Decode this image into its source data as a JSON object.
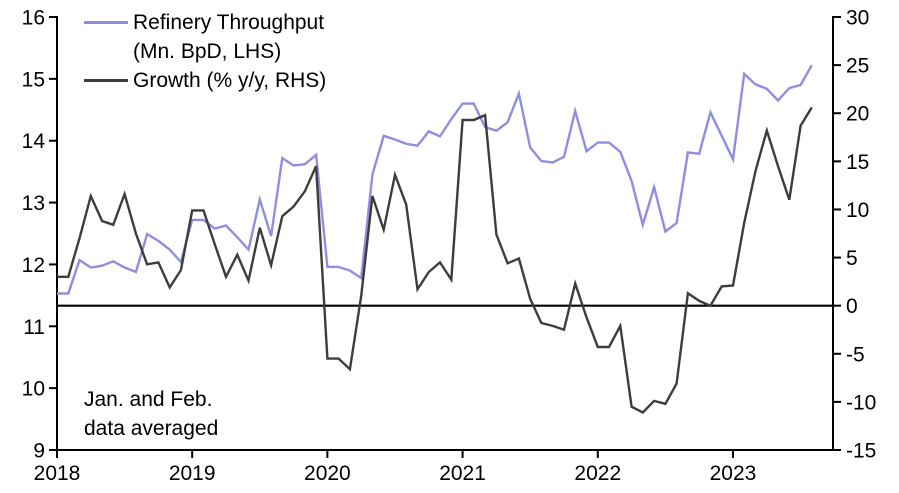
{
  "chart_data": {
    "type": "line",
    "title": "",
    "x": {
      "start": "2018-01",
      "end": "2023-08",
      "tick_years": [
        "2018",
        "2019",
        "2020",
        "2021",
        "2022",
        "2023"
      ]
    },
    "left_axis": {
      "label": "Mn. BpD",
      "min": 9,
      "max": 16,
      "ticks": [
        16,
        15,
        14,
        13,
        12,
        11,
        10,
        9
      ]
    },
    "right_axis": {
      "label": "% y/y",
      "min": -15,
      "max": 30,
      "ticks": [
        30,
        25,
        20,
        15,
        10,
        5,
        0,
        -5,
        -10,
        -15
      ]
    },
    "zero_line_rhs": 0,
    "grid": false,
    "legend_position": "top-left",
    "note": "Jan. and Feb. data averaged",
    "series": [
      {
        "name": "Refinery Throughput (Mn. BpD, LHS)",
        "axis": "left",
        "color": "#8F8EE0",
        "values": [
          11.53,
          11.53,
          12.07,
          11.95,
          11.98,
          12.05,
          11.95,
          11.88,
          12.49,
          12.38,
          12.24,
          12.04,
          12.72,
          12.72,
          12.58,
          12.63,
          12.44,
          12.24,
          13.05,
          12.46,
          13.72,
          13.6,
          13.62,
          13.77,
          11.96,
          11.96,
          11.9,
          11.78,
          13.45,
          14.08,
          14.02,
          13.95,
          13.92,
          14.15,
          14.07,
          14.35,
          14.6,
          14.6,
          14.22,
          14.16,
          14.3,
          14.76,
          13.89,
          13.67,
          13.65,
          13.74,
          14.48,
          13.83,
          13.97,
          13.97,
          13.82,
          13.35,
          12.64,
          13.25,
          12.53,
          12.67,
          13.81,
          13.79,
          14.46,
          14.08,
          13.7,
          15.08,
          14.91,
          14.84,
          14.65,
          14.85,
          14.9,
          15.22
        ]
      },
      {
        "name": "Growth (% y/y, RHS)",
        "axis": "right",
        "color": "#3D3D3D",
        "values": [
          3.0,
          3.0,
          7.0,
          11.4,
          8.8,
          8.4,
          11.6,
          7.5,
          4.3,
          4.5,
          1.9,
          3.7,
          9.9,
          9.9,
          6.4,
          3.0,
          5.3,
          2.6,
          8.1,
          4.2,
          9.3,
          10.3,
          11.9,
          14.5,
          -5.5,
          -5.5,
          -6.6,
          1.0,
          11.4,
          7.9,
          13.6,
          10.5,
          1.7,
          3.5,
          4.5,
          2.7,
          19.3,
          19.3,
          19.8,
          7.4,
          4.4,
          4.9,
          0.7,
          -1.8,
          -2.1,
          -2.5,
          2.3,
          -1.2,
          -4.3,
          -4.3,
          -2.1,
          -10.5,
          -11.1,
          -9.9,
          -10.2,
          -8.1,
          1.3,
          0.5,
          0.0,
          2.0,
          2.1,
          8.6,
          14.0,
          18.2,
          14.5,
          11.0,
          18.7,
          20.6
        ]
      }
    ]
  },
  "legend": {
    "items": [
      {
        "line1": "Refinery Throughput",
        "line2": "(Mn. BpD, LHS)",
        "color": "#8F8EE0"
      },
      {
        "line1": "Growth (% y/y, RHS)",
        "line2": "",
        "color": "#3D3D3D"
      }
    ]
  },
  "annotation": {
    "line1": "Jan. and Feb.",
    "line2": "data averaged"
  }
}
